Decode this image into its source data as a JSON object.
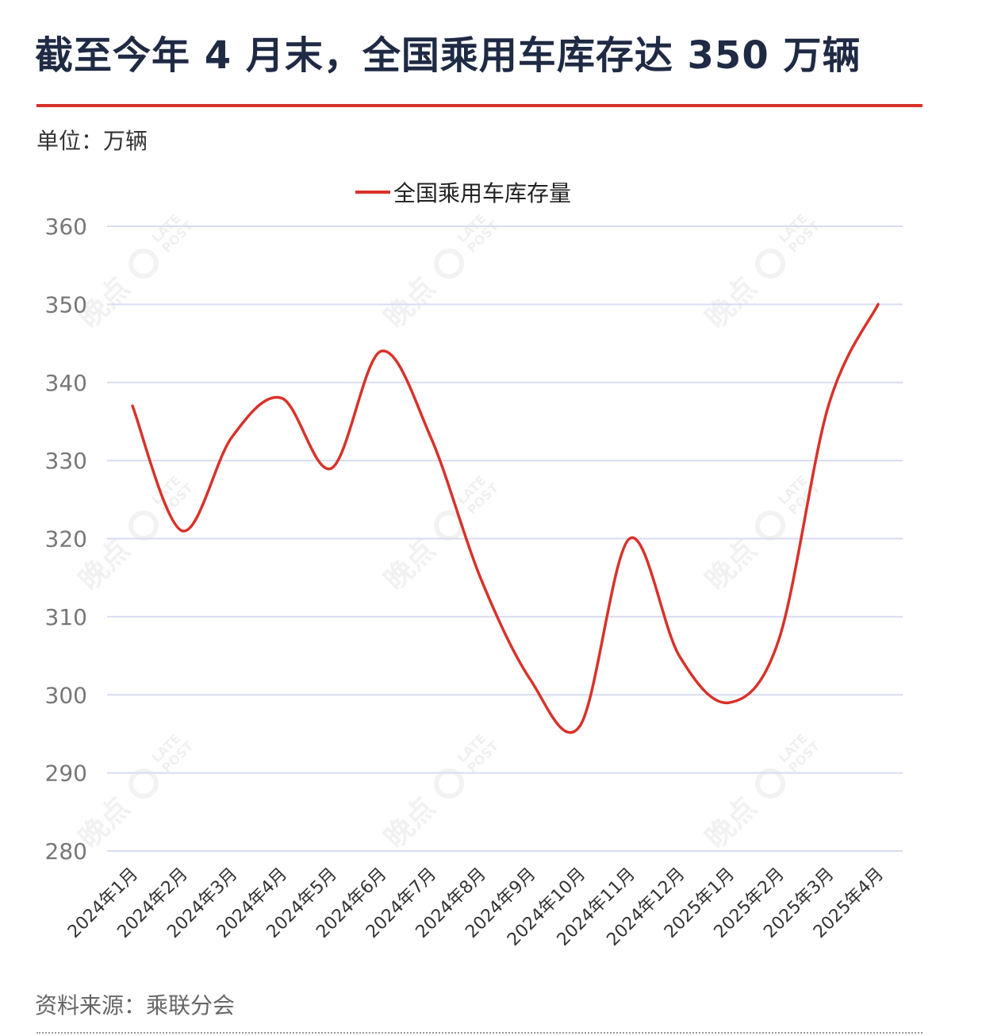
{
  "title": "截至今年 4 月末，全国乘用车库存达 350 万辆",
  "unit_label": "单位：万辆",
  "source_label": "资料来源：乘联分会",
  "watermark": {
    "cn": "晚点",
    "en1": "LATE",
    "en2": "POST"
  },
  "colors": {
    "line": "#d8322a",
    "grid": "#d9dcf0",
    "title": "#1f2a44",
    "accent": "#d8322a"
  },
  "chart_data": {
    "type": "line",
    "categories": [
      "2024年1月",
      "2024年2月",
      "2024年3月",
      "2024年4月",
      "2024年5月",
      "2024年6月",
      "2024年7月",
      "2024年8月",
      "2024年9月",
      "2024年10月",
      "2024年11月",
      "2024年12月",
      "2025年1月",
      "2025年2月",
      "2025年3月",
      "2025年4月"
    ],
    "series": [
      {
        "name": "全国乘用车库存量",
        "values": [
          337,
          321,
          333,
          338,
          329,
          344,
          333,
          315,
          302,
          296,
          320,
          305,
          299,
          307,
          337,
          350
        ]
      }
    ],
    "yticks": [
      280,
      290,
      300,
      310,
      320,
      330,
      340,
      350,
      360
    ],
    "ylim": [
      280,
      360
    ],
    "grid": true,
    "legend_position": "top-center",
    "xtick_rotation": -45
  }
}
